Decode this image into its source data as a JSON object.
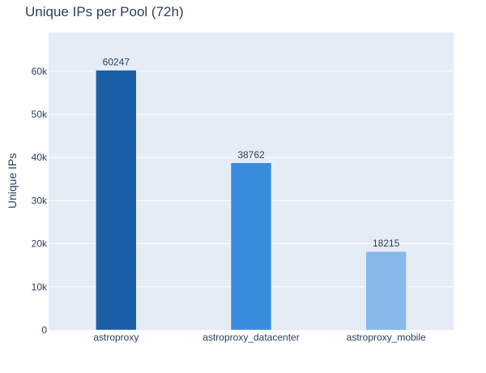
{
  "chart_data": {
    "type": "bar",
    "title": "Unique IPs per Pool (72h)",
    "xlabel": "",
    "ylabel": "Unique IPs",
    "categories": [
      "astroproxy",
      "astroproxy_datacenter",
      "astroproxy_mobile"
    ],
    "values": [
      60247,
      38762,
      18215
    ],
    "value_labels": [
      "60247",
      "38762",
      "18215"
    ],
    "bar_colors": [
      "#1a5ea8",
      "#3a8cde",
      "#87b8ea"
    ],
    "ylim": [
      0,
      69000
    ],
    "yticks": [
      0,
      10000,
      20000,
      30000,
      40000,
      50000,
      60000
    ],
    "ytick_labels": [
      "0",
      "10k",
      "20k",
      "30k",
      "40k",
      "50k",
      "60k"
    ],
    "grid": true,
    "legend": "none",
    "plot_background": "#e5ecf6"
  }
}
